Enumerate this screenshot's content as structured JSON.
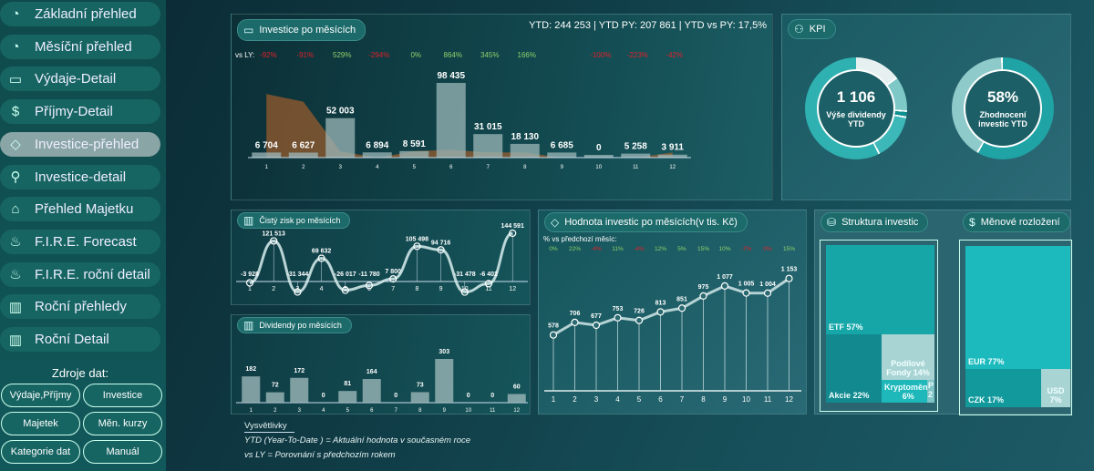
{
  "sidebar": {
    "items": [
      {
        "label": "Základní přehled",
        "icon": "pie-chart-icon"
      },
      {
        "label": "Měsíční přehled",
        "icon": "pie-chart-icon"
      },
      {
        "label": "Výdaje-Detail",
        "icon": "wallet-icon"
      },
      {
        "label": "Příjmy-Detail",
        "icon": "dollar-icon"
      },
      {
        "label": "Investice-přehled",
        "icon": "diamond-icon",
        "active": true
      },
      {
        "label": "Investice-detail",
        "icon": "search-icon"
      },
      {
        "label": "Přehled Majetku",
        "icon": "home-icon"
      },
      {
        "label": "F.I.R.E. Forecast",
        "icon": "fire-icon"
      },
      {
        "label": "F.I.R.E. roční detail",
        "icon": "fire-icon"
      },
      {
        "label": "Roční přehledy",
        "icon": "bar-chart-icon"
      },
      {
        "label": "Roční Detail",
        "icon": "bar-chart-icon"
      }
    ],
    "sources_title": "Zdroje dat:",
    "sources": [
      "Výdaje,Příjmy",
      "Investice",
      "Majetek",
      "Měn. kurzy",
      "Kategorie dat",
      "Manuál"
    ]
  },
  "investice": {
    "title": "Investice po měsících",
    "summary": "YTD: 244 253 | YTD PY: 207 861 | YTD vs PY: 17,5%",
    "vs_label": "vs LY:"
  },
  "kpi": {
    "title": "KPI",
    "dividend_value": "1 106",
    "dividend_label": "Výše dividendy YTD",
    "appreciation_value": "58%",
    "appreciation_label": "Zhodnocení investic YTD",
    "appreciation_fraction": 0.58
  },
  "zisk": {
    "title": "Čistý zisk po měsících"
  },
  "dividendy": {
    "title": "Dividendy po měsících"
  },
  "hodnota": {
    "title": "Hodnota investic po měsících(v tis. Kč)",
    "pct_label": "% vs předchozí měsíc:"
  },
  "struktura": {
    "title": "Struktura investic",
    "items": [
      {
        "label": "ETF 57%"
      },
      {
        "label": "Akcie 22%"
      },
      {
        "label": "Podílové Fondy 14%"
      },
      {
        "label": "Kryptoměny 6%"
      },
      {
        "label": "P 2"
      }
    ]
  },
  "mena": {
    "title": "Měnové rozložení",
    "items": [
      {
        "label": "EUR 77%"
      },
      {
        "label": "CZK 17%"
      },
      {
        "label": "USD 7%"
      }
    ]
  },
  "legend": {
    "title": "Vysvětlivky",
    "line1": "YTD  (Year-To-Date ) = Aktuální  hodnota v současném roce",
    "line2": "vs LY =  Porovnání s předchozím rokem"
  },
  "chart_data": [
    {
      "type": "bar",
      "title": "Investice po měsících",
      "categories": [
        "1",
        "2",
        "3",
        "4",
        "5",
        "6",
        "7",
        "8",
        "9",
        "10",
        "11",
        "12"
      ],
      "values": [
        6704,
        6627,
        52003,
        6894,
        8591,
        98435,
        31015,
        18130,
        6685,
        0,
        5258,
        3911
      ],
      "labels": [
        "6 704",
        "6 627",
        "52 003",
        "6 894",
        "8 591",
        "98 435",
        "31 015",
        "18 130",
        "6 685",
        "0",
        "5 258",
        "3 911"
      ],
      "vs_ly": [
        "-92%",
        "-91%",
        "529%",
        "-294%",
        "0%",
        "864%",
        "345%",
        "166%",
        "",
        "-100%",
        "-223%",
        "-42%"
      ],
      "vs_ly_values": [
        -92,
        -91,
        529,
        -294,
        0,
        864,
        345,
        166,
        null,
        -100,
        -223,
        -42
      ]
    },
    {
      "type": "line",
      "title": "Čistý zisk po měsících",
      "categories": [
        "1",
        "2",
        "3",
        "4",
        "5",
        "6",
        "7",
        "8",
        "9",
        "10",
        "11",
        "12"
      ],
      "values": [
        -3928,
        121513,
        -31344,
        69632,
        -26017,
        -11780,
        7800,
        105498,
        94716,
        -31478,
        -6402,
        144591
      ],
      "labels": [
        "-3 928",
        "121 513",
        "-31 344",
        "69 632",
        "-26 017",
        "-11 780",
        "7 800",
        "105 498",
        "94 716",
        "-31 478",
        "-6 402",
        "144 591"
      ]
    },
    {
      "type": "bar",
      "title": "Dividendy po měsících",
      "categories": [
        "1",
        "2",
        "3",
        "4",
        "5",
        "6",
        "7",
        "8",
        "9",
        "10",
        "11",
        "12"
      ],
      "values": [
        182,
        72,
        172,
        0,
        81,
        164,
        0,
        73,
        303,
        0,
        0,
        60
      ]
    },
    {
      "type": "line",
      "title": "Hodnota investic po měsících(v tis. Kč)",
      "categories": [
        "1",
        "2",
        "3",
        "4",
        "5",
        "6",
        "7",
        "8",
        "9",
        "10",
        "11",
        "12"
      ],
      "values": [
        578,
        706,
        677,
        753,
        726,
        813,
        851,
        975,
        1077,
        1005,
        1004,
        1153
      ],
      "labels": [
        "578",
        "706",
        "677",
        "753",
        "726",
        "813",
        "851",
        "975",
        "1 077",
        "1 005",
        "1 004",
        "1 153"
      ],
      "pct_vs_prev": [
        "0%",
        "22%",
        "-4%",
        "11%",
        "-4%",
        "12%",
        "5%",
        "15%",
        "10%",
        "-7%",
        "0%",
        "15%"
      ]
    }
  ],
  "colors": {
    "positive": "#8fd16a",
    "negative": "#e0202a",
    "bar": "#9bb7b8",
    "py_area": "#b8642a"
  }
}
